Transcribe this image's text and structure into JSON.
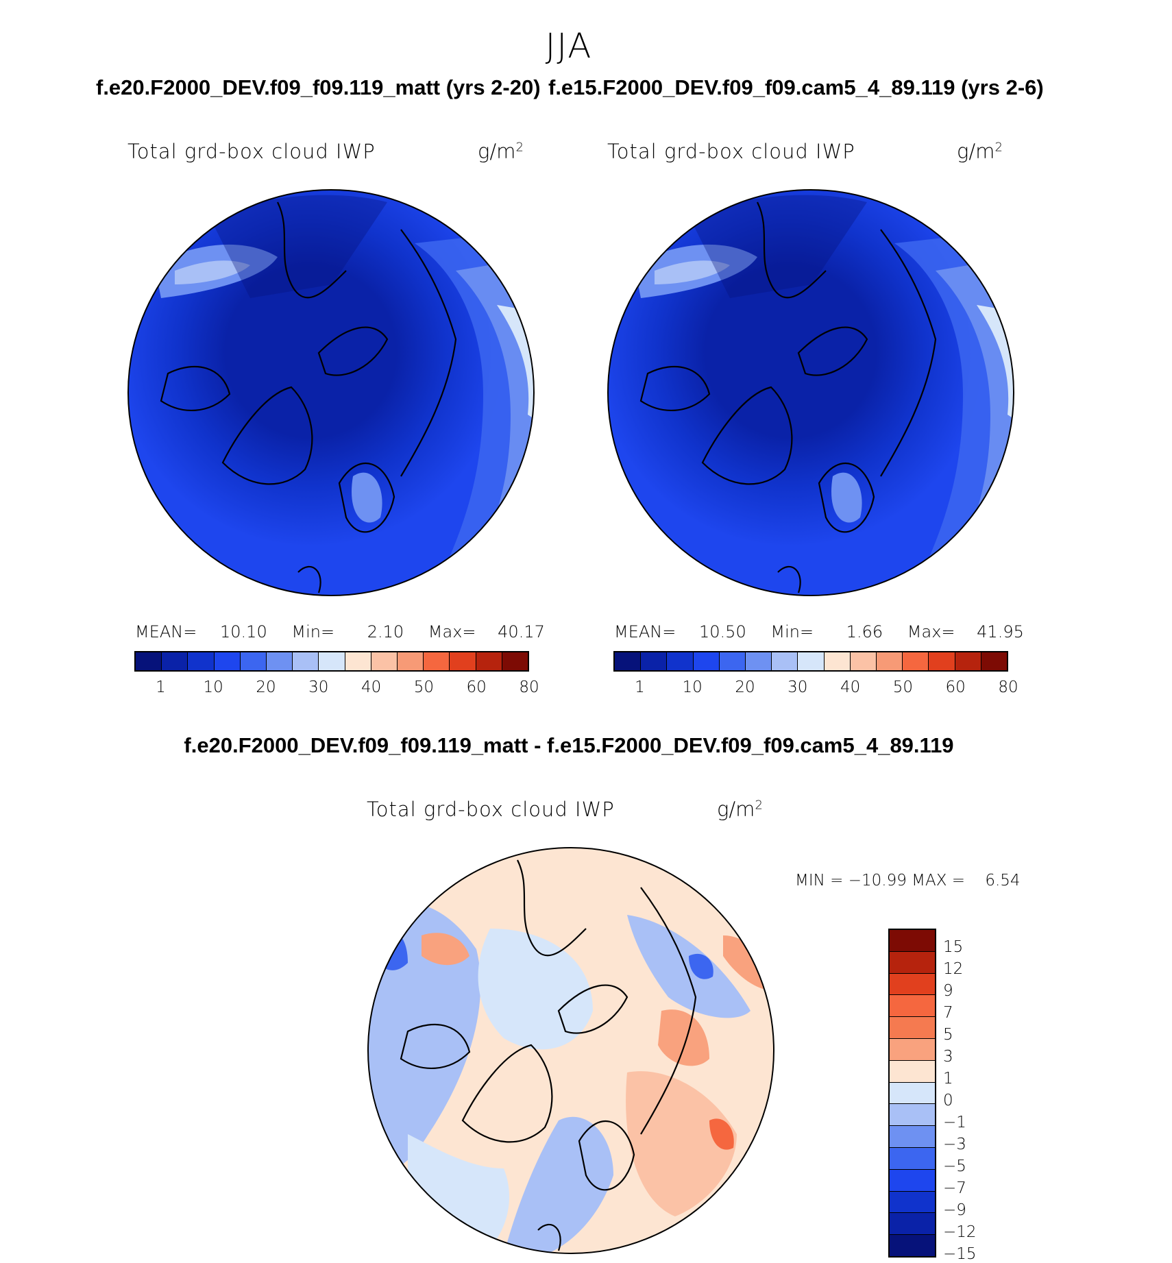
{
  "season": "JJA",
  "panels": [
    {
      "case_title": "f.e20.F2000_DEV.f09_f09.119_matt (yrs 2-20)",
      "variable": "Total grd-box cloud IWP",
      "units_base": "g/m",
      "units_exp": "2",
      "mean_label": "MEAN=",
      "mean_value": "10.10",
      "min_label": "Min=",
      "min_value": "2.10",
      "max_label": "Max=",
      "max_value": "40.17"
    },
    {
      "case_title": "f.e15.F2000_DEV.f09_f09.cam5_4_89.119 (yrs 2-6)",
      "variable": "Total grd-box cloud IWP",
      "units_base": "g/m",
      "units_exp": "2",
      "mean_label": "MEAN=",
      "mean_value": "10.50",
      "min_label": "Min=",
      "min_value": "1.66",
      "max_label": "Max=",
      "max_value": "41.95"
    }
  ],
  "diff_panel": {
    "case_title": "f.e20.F2000_DEV.f09_f09.119_matt - f.e15.F2000_DEV.f09_f09.cam5_4_89.119",
    "variable": "Total grd-box cloud IWP",
    "units_base": "g/m",
    "units_exp": "2",
    "minmax_text": "MIN = −10.99 MAX =    6.54"
  },
  "colorbar_main": {
    "colors": [
      "#06127a",
      "#0a22a8",
      "#1033cc",
      "#1e46ee",
      "#3c66f0",
      "#6e91f2",
      "#a9c0f6",
      "#d6e6fa",
      "#fde5d2",
      "#fbc2a6",
      "#f79a76",
      "#f5673f",
      "#e1401e",
      "#b6230d",
      "#7d0b04"
    ],
    "labels": [
      "1",
      "10",
      "20",
      "30",
      "40",
      "50",
      "60",
      "80"
    ]
  },
  "colorbar_diff": {
    "colors": [
      "#7d0b04",
      "#b6230d",
      "#e1401e",
      "#f5673f",
      "#f57a50",
      "#f9a27e",
      "#fde5d2",
      "#d6e6fa",
      "#a9c0f6",
      "#6e91f2",
      "#3c66f0",
      "#1e46ee",
      "#1033cc",
      "#0a22a8",
      "#06127a"
    ],
    "labels": [
      "15",
      "12",
      "9",
      "7",
      "5",
      "3",
      "1",
      "0",
      "−1",
      "−3",
      "−5",
      "−7",
      "−9",
      "−12",
      "−15"
    ]
  },
  "chart_data": [
    {
      "type": "heatmap",
      "title": "Total grd-box cloud IWP",
      "units": "g/m2",
      "projection": "north polar stereographic",
      "case": "f.e20.F2000_DEV.f09_f09.119_matt (yrs 2-20)",
      "season": "JJA",
      "mean": 10.1,
      "min": 2.1,
      "max": 40.17,
      "contour_levels": [
        1,
        5,
        10,
        15,
        20,
        25,
        30,
        35,
        40,
        45,
        50,
        55,
        60,
        70,
        80
      ],
      "colorbar_labels": [
        1,
        10,
        20,
        30,
        40,
        50,
        60,
        80
      ]
    },
    {
      "type": "heatmap",
      "title": "Total grd-box cloud IWP",
      "units": "g/m2",
      "projection": "north polar stereographic",
      "case": "f.e15.F2000_DEV.f09_f09.cam5_4_89.119 (yrs 2-6)",
      "season": "JJA",
      "mean": 10.5,
      "min": 1.66,
      "max": 41.95,
      "contour_levels": [
        1,
        5,
        10,
        15,
        20,
        25,
        30,
        35,
        40,
        45,
        50,
        55,
        60,
        70,
        80
      ],
      "colorbar_labels": [
        1,
        10,
        20,
        30,
        40,
        50,
        60,
        80
      ]
    },
    {
      "type": "heatmap",
      "title": "Total grd-box cloud IWP",
      "units": "g/m2",
      "projection": "north polar stereographic",
      "case": "f.e20.F2000_DEV.f09_f09.119_matt - f.e15.F2000_DEV.f09_f09.cam5_4_89.119",
      "season": "JJA",
      "min": -10.99,
      "max": 6.54,
      "colorbar_labels": [
        15,
        12,
        9,
        7,
        5,
        3,
        1,
        0,
        -1,
        -3,
        -5,
        -7,
        -9,
        -12,
        -15
      ]
    }
  ]
}
